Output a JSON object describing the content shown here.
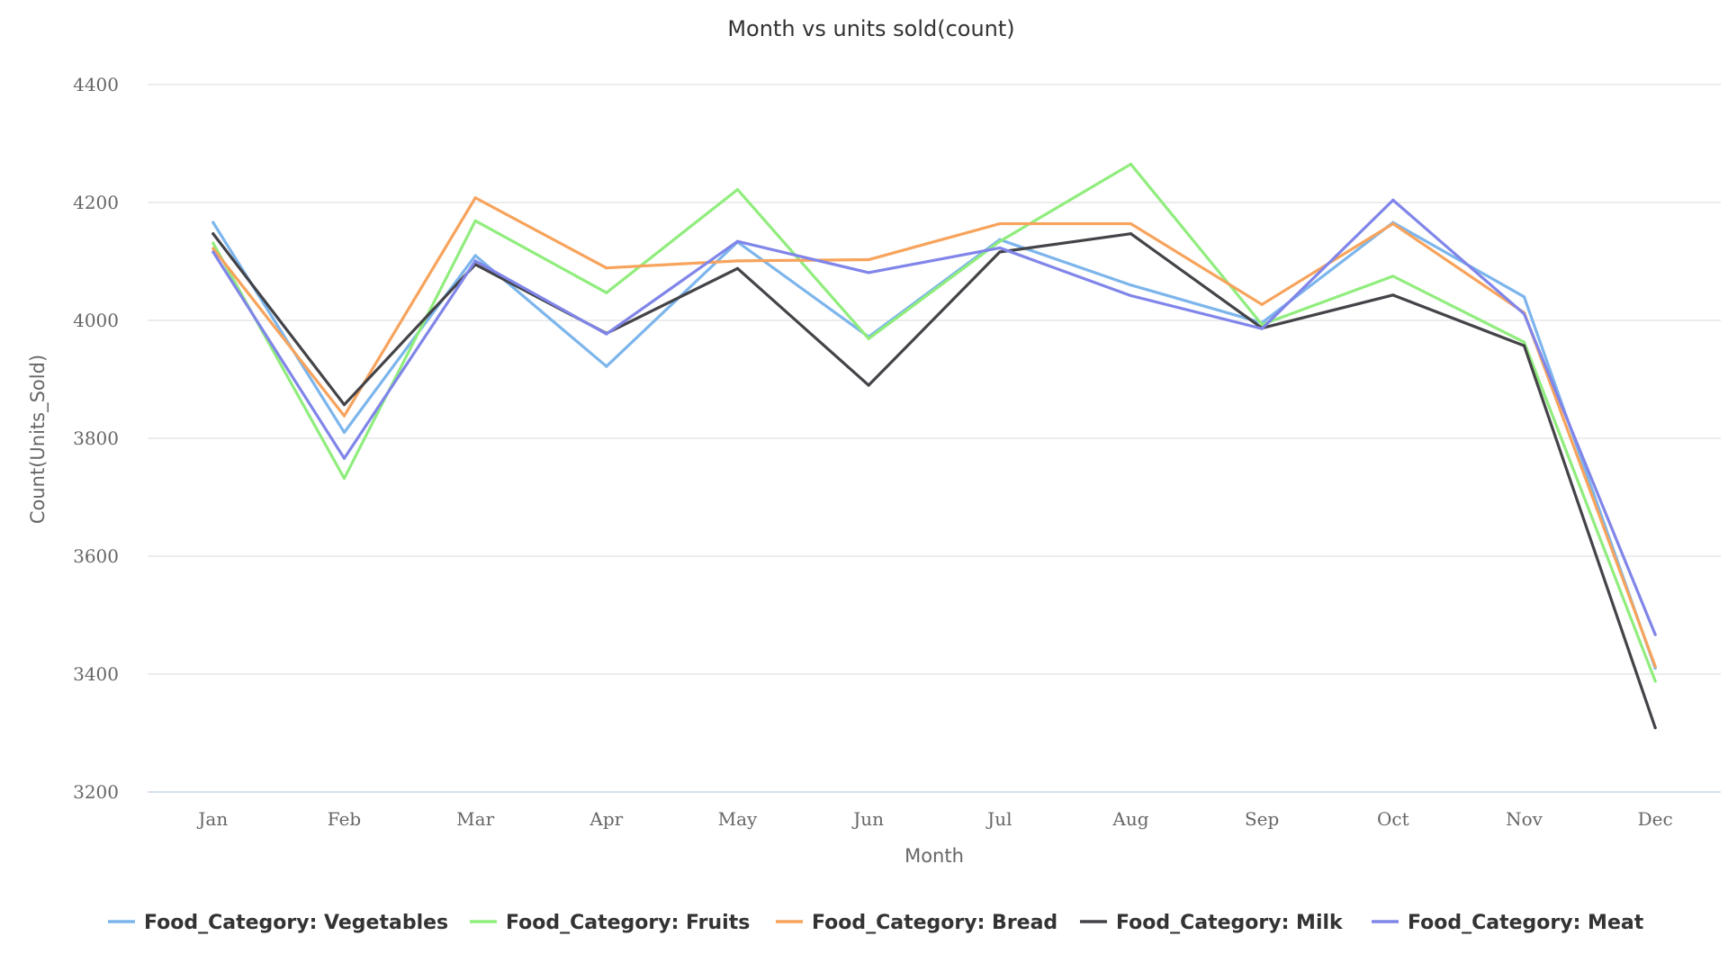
{
  "chart_data": {
    "type": "line",
    "title": "Month vs units sold(count)",
    "xlabel": "Month",
    "ylabel": "Count(Units_Sold)",
    "categories": [
      "Jan",
      "Feb",
      "Mar",
      "Apr",
      "May",
      "Jun",
      "Jul",
      "Aug",
      "Sep",
      "Oct",
      "Nov",
      "Dec"
    ],
    "ylim": [
      3200,
      4400
    ],
    "yticks": [
      "3200",
      "3400",
      "3600",
      "3800",
      "4000",
      "4200",
      "4400"
    ],
    "grid": true,
    "legend_position": "bottom",
    "series": [
      {
        "name": "Food_Category: Vegetables",
        "color": "#7cb5ec",
        "values": [
          4166,
          3810,
          4110,
          3922,
          4133,
          3972,
          4137,
          4060,
          3996,
          4166,
          4040,
          3410
        ]
      },
      {
        "name": "Food_Category: Fruits",
        "color": "#90ed7d",
        "values": [
          4131,
          3732,
          4169,
          4047,
          4222,
          3969,
          4134,
          4265,
          3993,
          4075,
          3963,
          3388
        ]
      },
      {
        "name": "Food_Category: Bread",
        "color": "#f7a35c",
        "values": [
          4122,
          3838,
          4208,
          4089,
          4101,
          4103,
          4164,
          4164,
          4027,
          4164,
          4013,
          3413
        ]
      },
      {
        "name": "Food_Category: Milk",
        "color": "#434348",
        "values": [
          4147,
          3857,
          4095,
          3978,
          4088,
          3890,
          4116,
          4147,
          3987,
          4043,
          3957,
          3309
        ]
      },
      {
        "name": "Food_Category: Meat",
        "color": "#8085e9",
        "values": [
          4116,
          3766,
          4101,
          3977,
          4134,
          4081,
          4123,
          4042,
          3986,
          4204,
          4011,
          3467
        ]
      }
    ]
  }
}
